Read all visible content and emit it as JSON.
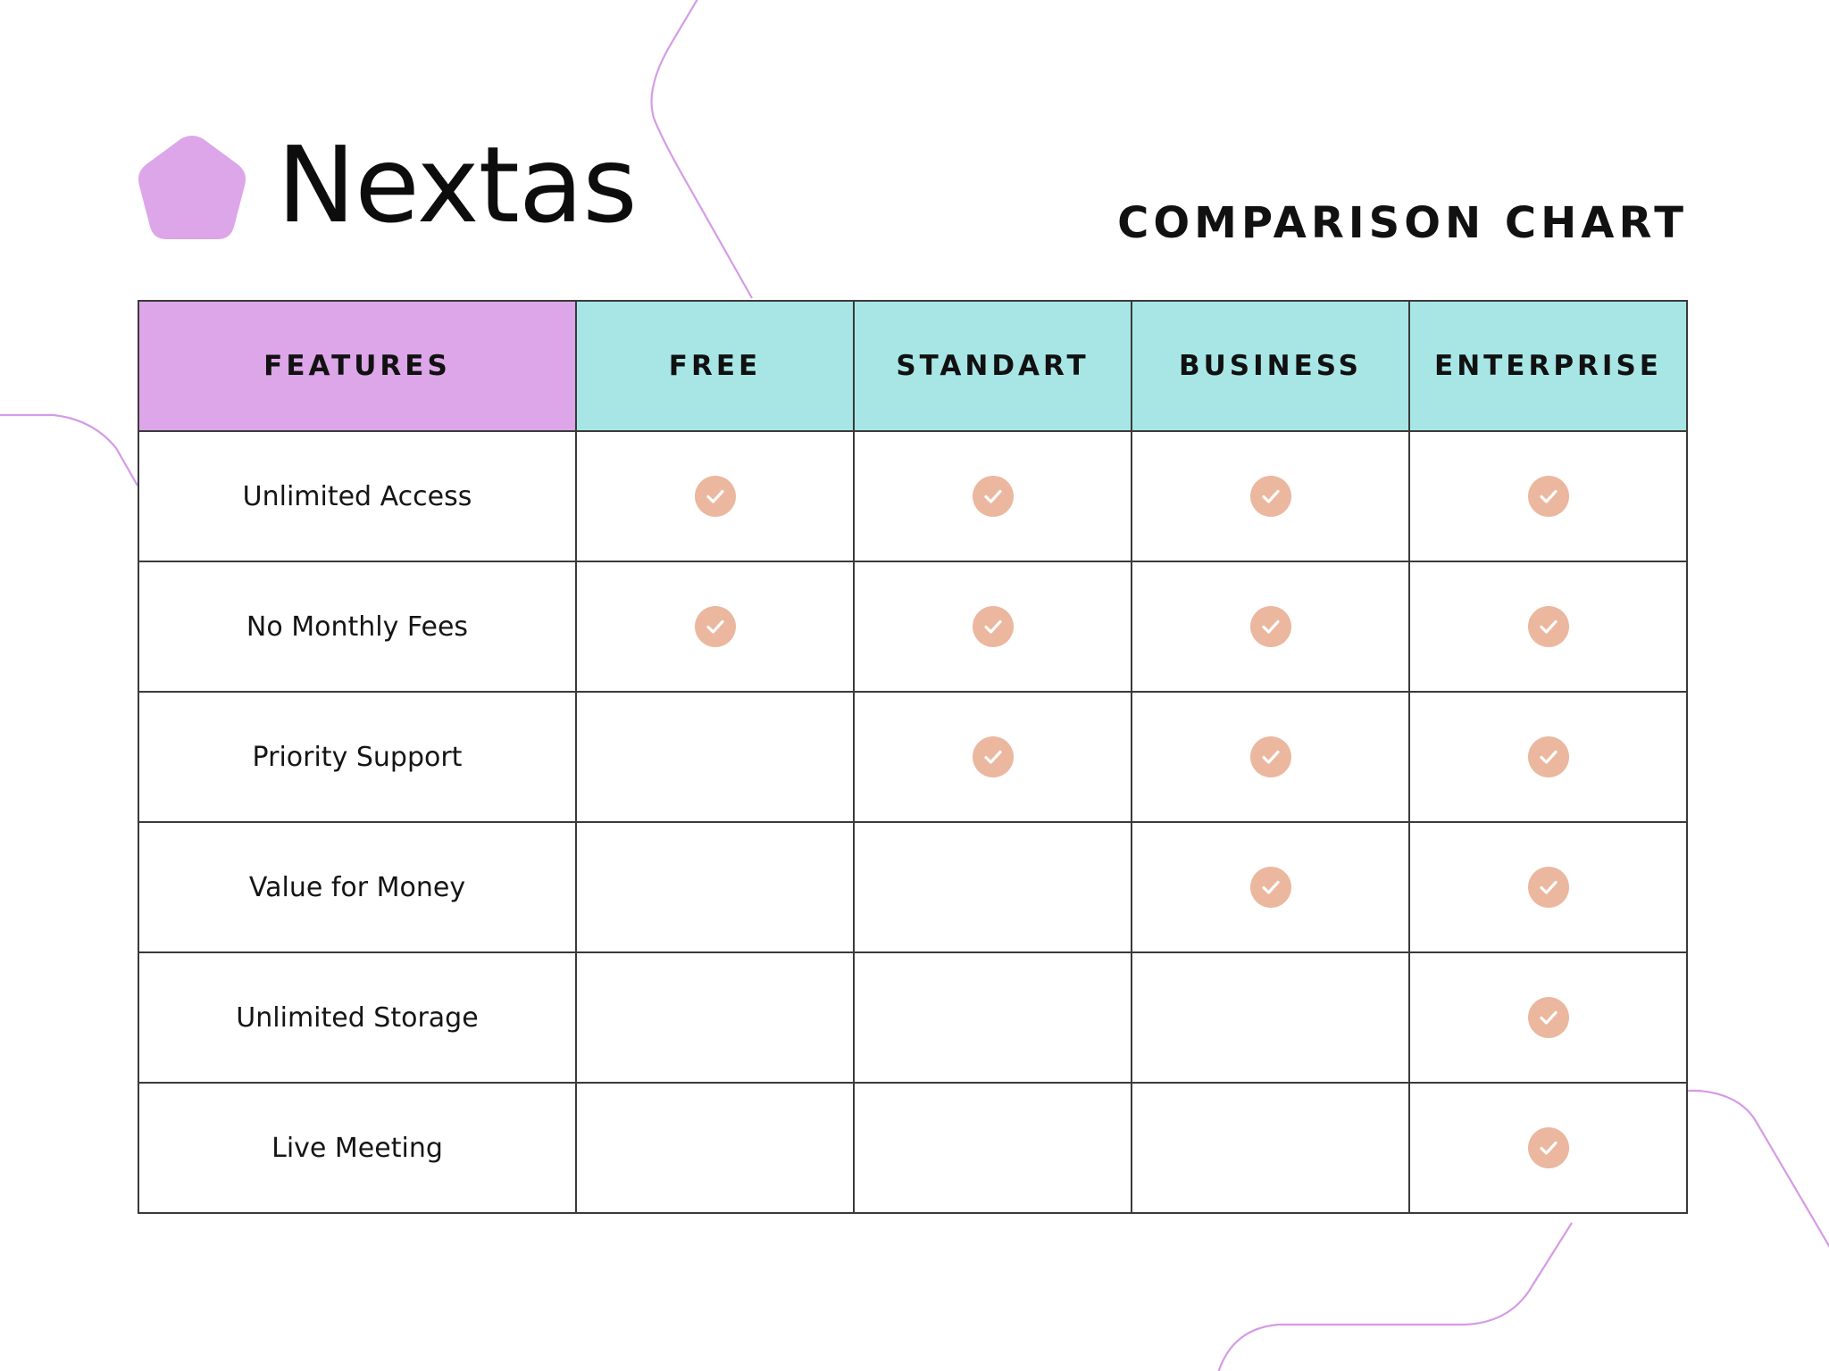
{
  "brand": {
    "name": "Nextas",
    "logo_icon": "pentagon-icon",
    "logo_color": "#dca6e8"
  },
  "title": "COMPARISON CHART",
  "colors": {
    "features_header": "#dca6e8",
    "tier_header": "#a8e6e6",
    "check": "#ebb79f",
    "decoration_line": "#d59be6"
  },
  "table": {
    "features_header": "FEATURES",
    "tiers": [
      "FREE",
      "STANDART",
      "BUSINESS",
      "ENTERPRISE"
    ],
    "check_icon": "check-circle-icon",
    "rows": [
      {
        "feature": "Unlimited Access",
        "included": [
          true,
          true,
          true,
          true
        ]
      },
      {
        "feature": "No Monthly Fees",
        "included": [
          true,
          true,
          true,
          true
        ]
      },
      {
        "feature": "Priority Support",
        "included": [
          false,
          true,
          true,
          true
        ]
      },
      {
        "feature": "Value for Money",
        "included": [
          false,
          false,
          true,
          true
        ]
      },
      {
        "feature": "Unlimited Storage",
        "included": [
          false,
          false,
          false,
          true
        ]
      },
      {
        "feature": "Live Meeting",
        "included": [
          false,
          false,
          false,
          true
        ]
      }
    ]
  }
}
